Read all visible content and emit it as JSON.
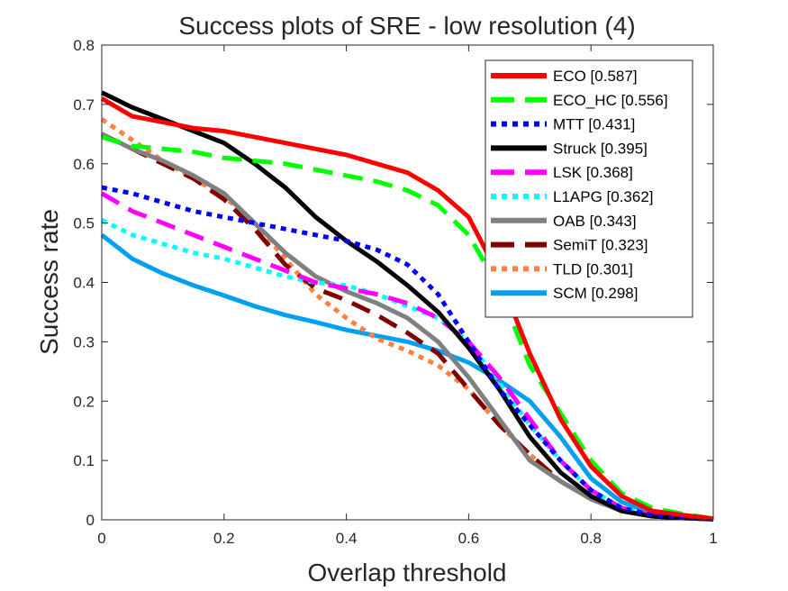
{
  "chart_data": {
    "type": "line",
    "title": "Success plots of SRE - low resolution (4)",
    "xlabel": "Overlap threshold",
    "ylabel": "Success rate",
    "xlim": [
      0,
      1
    ],
    "ylim": [
      0,
      0.8
    ],
    "xticks": [
      0,
      0.2,
      0.4,
      0.6,
      0.8,
      1
    ],
    "yticks": [
      0,
      0.1,
      0.2,
      0.3,
      0.4,
      0.5,
      0.6,
      0.7,
      0.8
    ],
    "xtick_labels": [
      "0",
      "0.2",
      "0.4",
      "0.6",
      "0.8",
      "1"
    ],
    "ytick_labels": [
      "0",
      "0.1",
      "0.2",
      "0.3",
      "0.4",
      "0.5",
      "0.6",
      "0.7",
      "0.8"
    ],
    "grid": false,
    "legend_position": "top-right",
    "x": [
      0,
      0.05,
      0.1,
      0.15,
      0.2,
      0.25,
      0.3,
      0.35,
      0.4,
      0.45,
      0.5,
      0.55,
      0.6,
      0.65,
      0.7,
      0.75,
      0.8,
      0.85,
      0.9,
      0.95,
      1
    ],
    "series": [
      {
        "name": "ECO",
        "label": "ECO [0.587]",
        "color": "#ff0000",
        "style": "solid",
        "values": [
          0.71,
          0.68,
          0.67,
          0.66,
          0.655,
          0.645,
          0.635,
          0.625,
          0.615,
          0.6,
          0.585,
          0.555,
          0.51,
          0.41,
          0.28,
          0.17,
          0.09,
          0.04,
          0.015,
          0.008,
          0.002
        ]
      },
      {
        "name": "ECO_HC",
        "label": "ECO_HC [0.556]",
        "color": "#00ff00",
        "style": "dash",
        "values": [
          0.645,
          0.63,
          0.625,
          0.62,
          0.61,
          0.605,
          0.6,
          0.59,
          0.58,
          0.57,
          0.555,
          0.53,
          0.48,
          0.39,
          0.26,
          0.18,
          0.1,
          0.045,
          0.02,
          0.01,
          0.002
        ]
      },
      {
        "name": "MTT",
        "label": "MTT [0.431]",
        "color": "#0000ff",
        "style": "dot",
        "values": [
          0.56,
          0.55,
          0.535,
          0.52,
          0.51,
          0.5,
          0.49,
          0.48,
          0.47,
          0.455,
          0.43,
          0.38,
          0.3,
          0.22,
          0.16,
          0.1,
          0.05,
          0.02,
          0.008,
          0.004,
          0.001
        ]
      },
      {
        "name": "Struck",
        "label": "Struck [0.395]",
        "color": "#000000",
        "style": "solid",
        "values": [
          0.72,
          0.695,
          0.675,
          0.655,
          0.635,
          0.6,
          0.56,
          0.51,
          0.47,
          0.435,
          0.395,
          0.35,
          0.29,
          0.22,
          0.14,
          0.08,
          0.04,
          0.015,
          0.006,
          0.003,
          0.001
        ]
      },
      {
        "name": "LSK",
        "label": "LSK [0.368]",
        "color": "#ff00ff",
        "style": "dash",
        "values": [
          0.55,
          0.52,
          0.5,
          0.48,
          0.46,
          0.44,
          0.42,
          0.4,
          0.39,
          0.38,
          0.365,
          0.34,
          0.3,
          0.24,
          0.17,
          0.1,
          0.05,
          0.02,
          0.008,
          0.004,
          0.001
        ]
      },
      {
        "name": "L1APG",
        "label": "L1APG [0.362]",
        "color": "#00ffff",
        "style": "dot",
        "values": [
          0.505,
          0.48,
          0.465,
          0.45,
          0.44,
          0.425,
          0.41,
          0.4,
          0.395,
          0.38,
          0.36,
          0.34,
          0.3,
          0.23,
          0.16,
          0.1,
          0.05,
          0.02,
          0.008,
          0.004,
          0.001
        ]
      },
      {
        "name": "OAB",
        "label": "OAB [0.343]",
        "color": "#808080",
        "style": "solid",
        "values": [
          0.65,
          0.625,
          0.605,
          0.58,
          0.55,
          0.5,
          0.45,
          0.41,
          0.385,
          0.365,
          0.34,
          0.3,
          0.24,
          0.17,
          0.1,
          0.065,
          0.035,
          0.015,
          0.006,
          0.003,
          0.001
        ]
      },
      {
        "name": "SemiT",
        "label": "SemiT [0.323]",
        "color": "#800000",
        "style": "dash",
        "values": [
          0.65,
          0.625,
          0.6,
          0.575,
          0.54,
          0.49,
          0.43,
          0.39,
          0.37,
          0.345,
          0.315,
          0.28,
          0.22,
          0.16,
          0.11,
          0.065,
          0.035,
          0.015,
          0.006,
          0.003,
          0.001
        ]
      },
      {
        "name": "TLD",
        "label": "TLD [0.301]",
        "color": "#ff8040",
        "style": "dot",
        "values": [
          0.675,
          0.64,
          0.605,
          0.575,
          0.545,
          0.5,
          0.44,
          0.38,
          0.34,
          0.305,
          0.285,
          0.26,
          0.22,
          0.16,
          0.11,
          0.065,
          0.035,
          0.015,
          0.006,
          0.003,
          0.001
        ]
      },
      {
        "name": "SCM",
        "label": "SCM [0.298]",
        "color": "#00a0f0",
        "style": "solid",
        "values": [
          0.48,
          0.44,
          0.415,
          0.395,
          0.378,
          0.36,
          0.345,
          0.333,
          0.32,
          0.31,
          0.3,
          0.285,
          0.265,
          0.235,
          0.2,
          0.14,
          0.07,
          0.03,
          0.012,
          0.005,
          0.001
        ]
      }
    ]
  }
}
